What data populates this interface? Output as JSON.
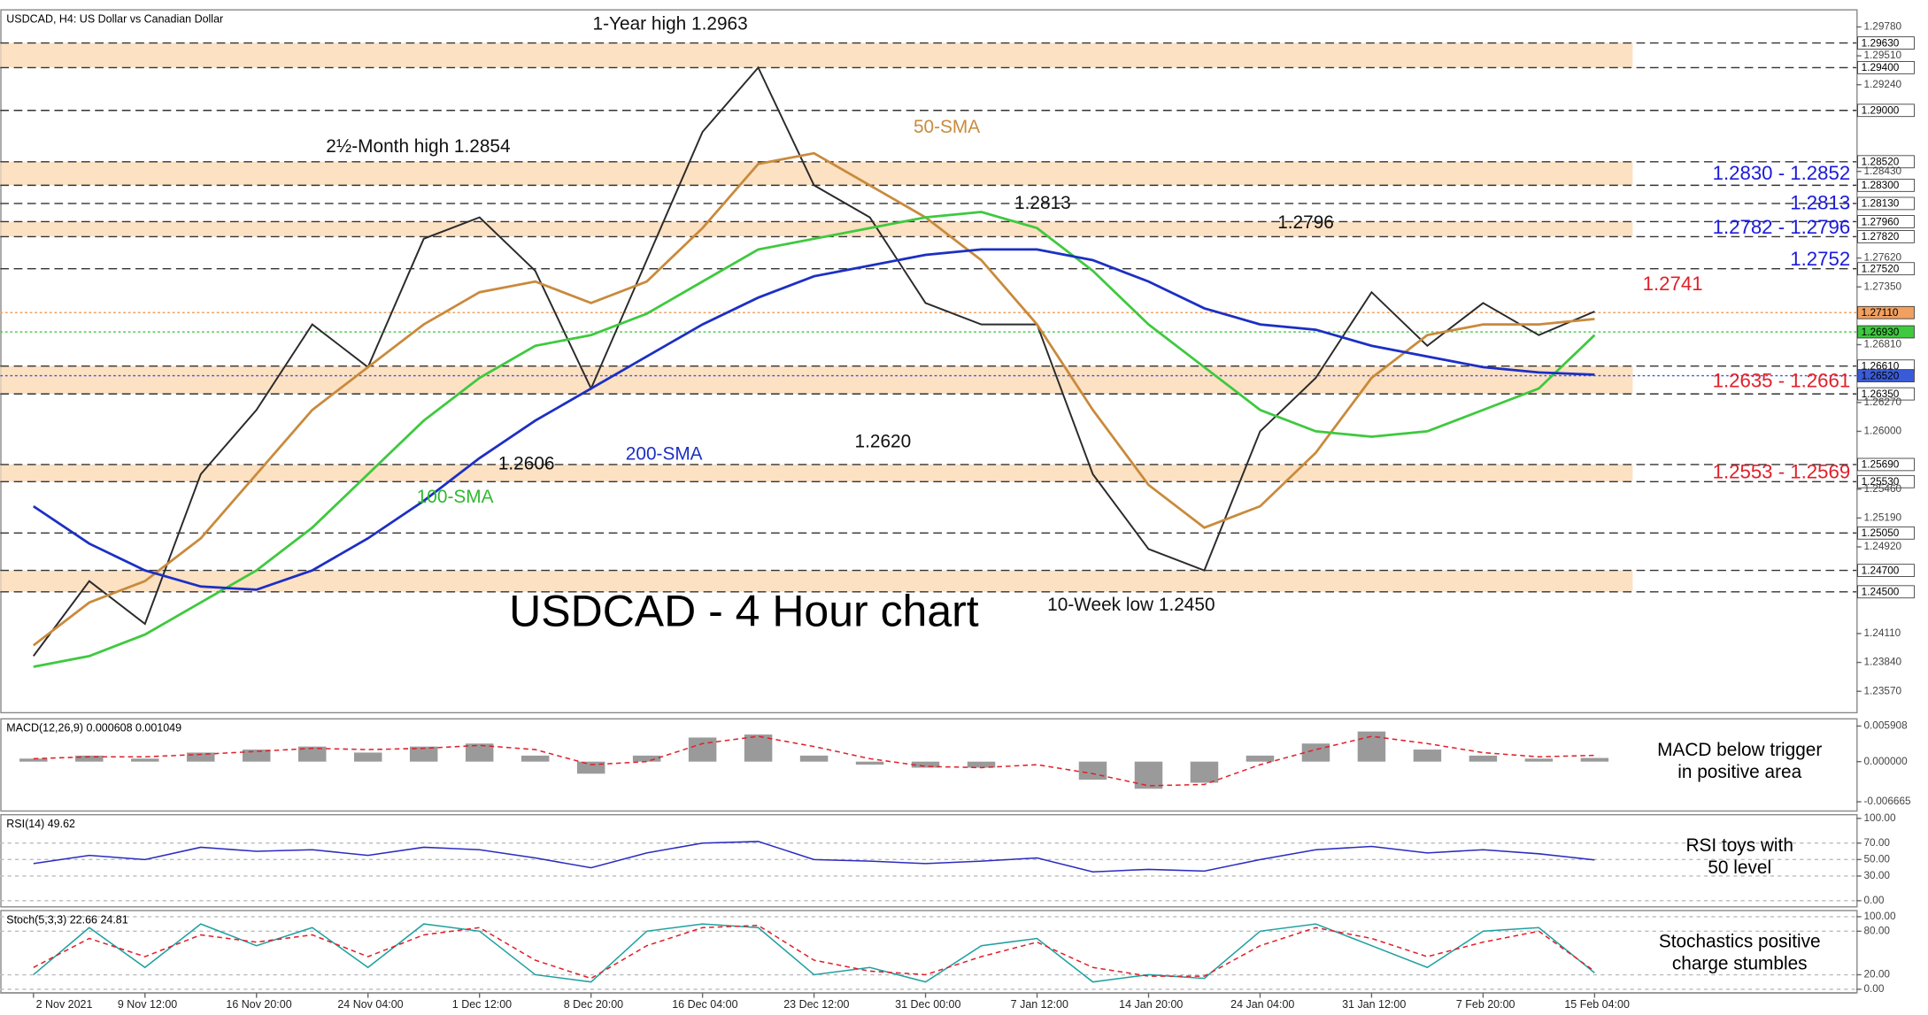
{
  "chart_data": [
    {
      "type": "line",
      "title": "USDCAD, H4:  US Dollar vs Canadian Dollar",
      "categories": [
        "2 Nov 2021",
        null,
        "9 Nov 12:00",
        null,
        "16 Nov 20:00",
        null,
        "24 Nov 04:00",
        null,
        "1 Dec 12:00",
        null,
        "8 Dec 20:00",
        null,
        "16 Dec 04:00",
        null,
        "23 Dec 12:00",
        null,
        "31 Dec 00:00",
        null,
        "7 Jan 12:00",
        null,
        "14 Jan 20:00",
        null,
        "24 Jan 04:00",
        null,
        "31 Jan 12:00",
        null,
        "7 Feb 20:00",
        null,
        "15 Feb 04:00"
      ],
      "series": [
        {
          "color": "#2a2a2a",
          "values": [
            1.239,
            1.246,
            1.242,
            1.256,
            1.262,
            1.27,
            1.266,
            1.278,
            1.28,
            1.275,
            1.264,
            1.276,
            1.288,
            1.294,
            1.283,
            1.28,
            1.272,
            1.27,
            1.27,
            1.256,
            1.249,
            1.247,
            1.26,
            1.265,
            1.273,
            1.268,
            1.272,
            1.269,
            1.2712
          ]
        },
        {
          "color": "#c98a3c",
          "values": [
            1.24,
            1.244,
            1.246,
            1.25,
            1.256,
            1.262,
            1.266,
            1.27,
            1.273,
            1.274,
            1.272,
            1.274,
            1.279,
            1.285,
            1.286,
            1.283,
            1.28,
            1.276,
            1.27,
            1.262,
            1.255,
            1.251,
            1.253,
            1.258,
            1.265,
            1.269,
            1.27,
            1.27,
            1.2705
          ]
        },
        {
          "color": "#3ec93e",
          "values": [
            1.238,
            1.239,
            1.241,
            1.244,
            1.247,
            1.251,
            1.256,
            1.261,
            1.265,
            1.268,
            1.269,
            1.271,
            1.274,
            1.277,
            1.278,
            1.279,
            1.28,
            1.2805,
            1.279,
            1.275,
            1.27,
            1.266,
            1.262,
            1.26,
            1.2595,
            1.26,
            1.262,
            1.264,
            1.269
          ]
        },
        {
          "color": "#1c2fc4",
          "values": [
            1.253,
            1.2495,
            1.247,
            1.2455,
            1.2452,
            1.247,
            1.25,
            1.2535,
            1.2575,
            1.261,
            1.264,
            1.267,
            1.27,
            1.2725,
            1.2745,
            1.2755,
            1.2765,
            1.277,
            1.277,
            1.276,
            1.274,
            1.2715,
            1.27,
            1.2695,
            1.268,
            1.267,
            1.266,
            1.2655,
            1.2653
          ]
        }
      ],
      "ylim": [
        1.2337,
        1.2994
      ],
      "yticks": [
        {
          "value": 1.2978,
          "label": "1.29780"
        },
        {
          "value": 1.2951,
          "label": "1.29510"
        },
        {
          "value": 1.2924,
          "label": "1.29240"
        },
        {
          "value": 1.2843,
          "label": "1.28430"
        },
        {
          "value": 1.2762,
          "label": "1.27620"
        },
        {
          "value": 1.2735,
          "label": "1.27350"
        },
        {
          "value": 1.2681,
          "label": "1.26810"
        },
        {
          "value": 1.2627,
          "label": "1.26270"
        },
        {
          "value": 1.26,
          "label": "1.26000"
        },
        {
          "value": 1.2546,
          "label": "1.25460"
        },
        {
          "value": 1.2519,
          "label": "1.25190"
        },
        {
          "value": 1.2492,
          "label": "1.24920"
        },
        {
          "value": 1.2411,
          "label": "1.24110"
        },
        {
          "value": 1.2384,
          "label": "1.23840"
        },
        {
          "value": 1.2357,
          "label": "1.23570"
        }
      ],
      "levels": [
        {
          "value": 1.2963,
          "label": "1.29630"
        },
        {
          "value": 1.294,
          "label": "1.29400"
        },
        {
          "value": 1.29,
          "label": "1.29000"
        },
        {
          "value": 1.2852,
          "label": "1.28520"
        },
        {
          "value": 1.283,
          "label": "1.28300"
        },
        {
          "value": 1.2813,
          "label": "1.28130"
        },
        {
          "value": 1.2796,
          "label": "1.27960"
        },
        {
          "value": 1.2782,
          "label": "1.27820"
        },
        {
          "value": 1.2752,
          "label": "1.27520"
        },
        {
          "value": 1.2711,
          "label": "1.27110",
          "color": "#f0a060"
        },
        {
          "value": 1.2693,
          "label": "1.26930",
          "color": "#3ec93e"
        },
        {
          "value": 1.2661,
          "label": "1.26610"
        },
        {
          "value": 1.2652,
          "label": "1.26520",
          "color": "#3a5bd9"
        },
        {
          "value": 1.2635,
          "label": "1.26350"
        },
        {
          "value": 1.2569,
          "label": "1.25690"
        },
        {
          "value": 1.2553,
          "label": "1.25530"
        },
        {
          "value": 1.2505,
          "label": "1.25050"
        },
        {
          "value": 1.247,
          "label": "1.24700"
        },
        {
          "value": 1.245,
          "label": "1.24500"
        }
      ],
      "zones": [
        [
          1.294,
          1.2963
        ],
        [
          1.283,
          1.2852
        ],
        [
          1.2782,
          1.2796
        ],
        [
          1.2635,
          1.2661
        ],
        [
          1.2553,
          1.2569
        ],
        [
          1.245,
          1.247
        ]
      ],
      "annotations": [
        {
          "text": "1-Year high 1.2963",
          "color": "#111111"
        },
        {
          "text": "2½-Month high 1.2854",
          "color": "#111111"
        },
        {
          "text": "1.2606",
          "color": "#111111"
        },
        {
          "text": "1.2620",
          "color": "#111111"
        },
        {
          "text": "1.2813",
          "color": "#111111"
        },
        {
          "text": "1.2796",
          "color": "#111111"
        },
        {
          "text": "10-Week low 1.2450",
          "color": "#111111"
        },
        {
          "text": "50-SMA",
          "color": "#c98a3c"
        },
        {
          "text": "100-SMA",
          "color": "#2fb82f"
        },
        {
          "text": "200-SMA",
          "color": "#1c2fc4"
        },
        {
          "text": "USDCAD - 4 Hour chart",
          "color": "#000000"
        },
        {
          "text": "1.2830 - 1.2852",
          "color": "#1a1adb"
        },
        {
          "text": "1.2813",
          "color": "#1a1adb"
        },
        {
          "text": "1.2782 - 1.2796",
          "color": "#1a1adb"
        },
        {
          "text": "1.2752",
          "color": "#1a1adb"
        },
        {
          "text": "1.2741",
          "color": "#e0202a"
        },
        {
          "text": "1.2635 - 1.2661",
          "color": "#e0202a"
        },
        {
          "text": "1.2553 - 1.2569",
          "color": "#e0202a"
        }
      ]
    },
    {
      "type": "line",
      "title": "MACD(12,26,9) 0.000608 0.001049",
      "series": [
        {
          "type": "bar",
          "color": "#9a9a9a",
          "values": [
            0.0005,
            0.001,
            0.0005,
            0.0015,
            0.002,
            0.0025,
            0.0015,
            0.0025,
            0.003,
            0.001,
            -0.002,
            0.001,
            0.004,
            0.0045,
            0.001,
            -0.0005,
            -0.001,
            -0.001,
            0.0,
            -0.003,
            -0.0045,
            -0.0035,
            0.001,
            0.003,
            0.005,
            0.002,
            0.001,
            0.0005,
            0.000608
          ]
        },
        {
          "color": "#e0202a",
          "dash": true,
          "values": [
            0.0005,
            0.0008,
            0.0008,
            0.0012,
            0.0017,
            0.0022,
            0.002,
            0.0022,
            0.0027,
            0.002,
            -0.0005,
            0.0,
            0.003,
            0.0042,
            0.0025,
            0.0005,
            -0.0008,
            -0.001,
            -0.0005,
            -0.002,
            -0.004,
            -0.0038,
            -0.0005,
            0.002,
            0.0042,
            0.003,
            0.0015,
            0.0008,
            0.001049
          ]
        }
      ],
      "ylim": [
        -0.0082,
        0.0071
      ],
      "yticks": [
        {
          "value": 0.005908,
          "label": "0.005908"
        },
        {
          "value": 0,
          "label": "0.000000"
        },
        {
          "value": -0.006665,
          "label": "-0.006665"
        }
      ],
      "notes": [
        "MACD below trigger",
        "in positive area"
      ]
    },
    {
      "type": "line",
      "title": "RSI(14) 49.62",
      "series": [
        {
          "color": "#2b2bc0",
          "values": [
            45,
            55,
            50,
            65,
            60,
            62,
            55,
            65,
            62,
            52,
            40,
            58,
            70,
            72,
            50,
            48,
            45,
            48,
            52,
            35,
            38,
            36,
            50,
            62,
            66,
            58,
            62,
            57,
            49.62
          ]
        }
      ],
      "ylim": [
        -7.5,
        104.5
      ],
      "grid": true,
      "yticks": [
        {
          "value": 100,
          "label": "100.00"
        },
        {
          "value": 70,
          "label": "70.00"
        },
        {
          "value": 50,
          "label": "50.00"
        },
        {
          "value": 30,
          "label": "30.00"
        },
        {
          "value": 0,
          "label": "0.00"
        }
      ],
      "notes": [
        "RSI toys with",
        "50 level"
      ]
    },
    {
      "type": "line",
      "title": "Stoch(5,3,3) 22.66 24.81",
      "series": [
        {
          "color": "#20a0a0",
          "values": [
            20,
            85,
            30,
            90,
            60,
            85,
            30,
            90,
            80,
            20,
            10,
            80,
            90,
            85,
            20,
            30,
            10,
            60,
            70,
            10,
            20,
            15,
            80,
            90,
            60,
            30,
            80,
            85,
            22.66
          ]
        },
        {
          "color": "#e0202a",
          "dash": true,
          "values": [
            30,
            70,
            45,
            75,
            65,
            75,
            45,
            75,
            85,
            40,
            15,
            60,
            85,
            88,
            40,
            25,
            20,
            45,
            65,
            30,
            18,
            18,
            60,
            85,
            70,
            45,
            65,
            80,
            24.81
          ]
        }
      ],
      "ylim": [
        -5,
        108.5
      ],
      "grid": true,
      "yticks": [
        {
          "value": 100,
          "label": "100.00"
        },
        {
          "value": 80,
          "label": "80.00"
        },
        {
          "value": 20,
          "label": "20.00"
        },
        {
          "value": 0,
          "label": "0.00"
        }
      ],
      "notes": [
        "Stochastics positive",
        "charge stumbles"
      ]
    }
  ]
}
